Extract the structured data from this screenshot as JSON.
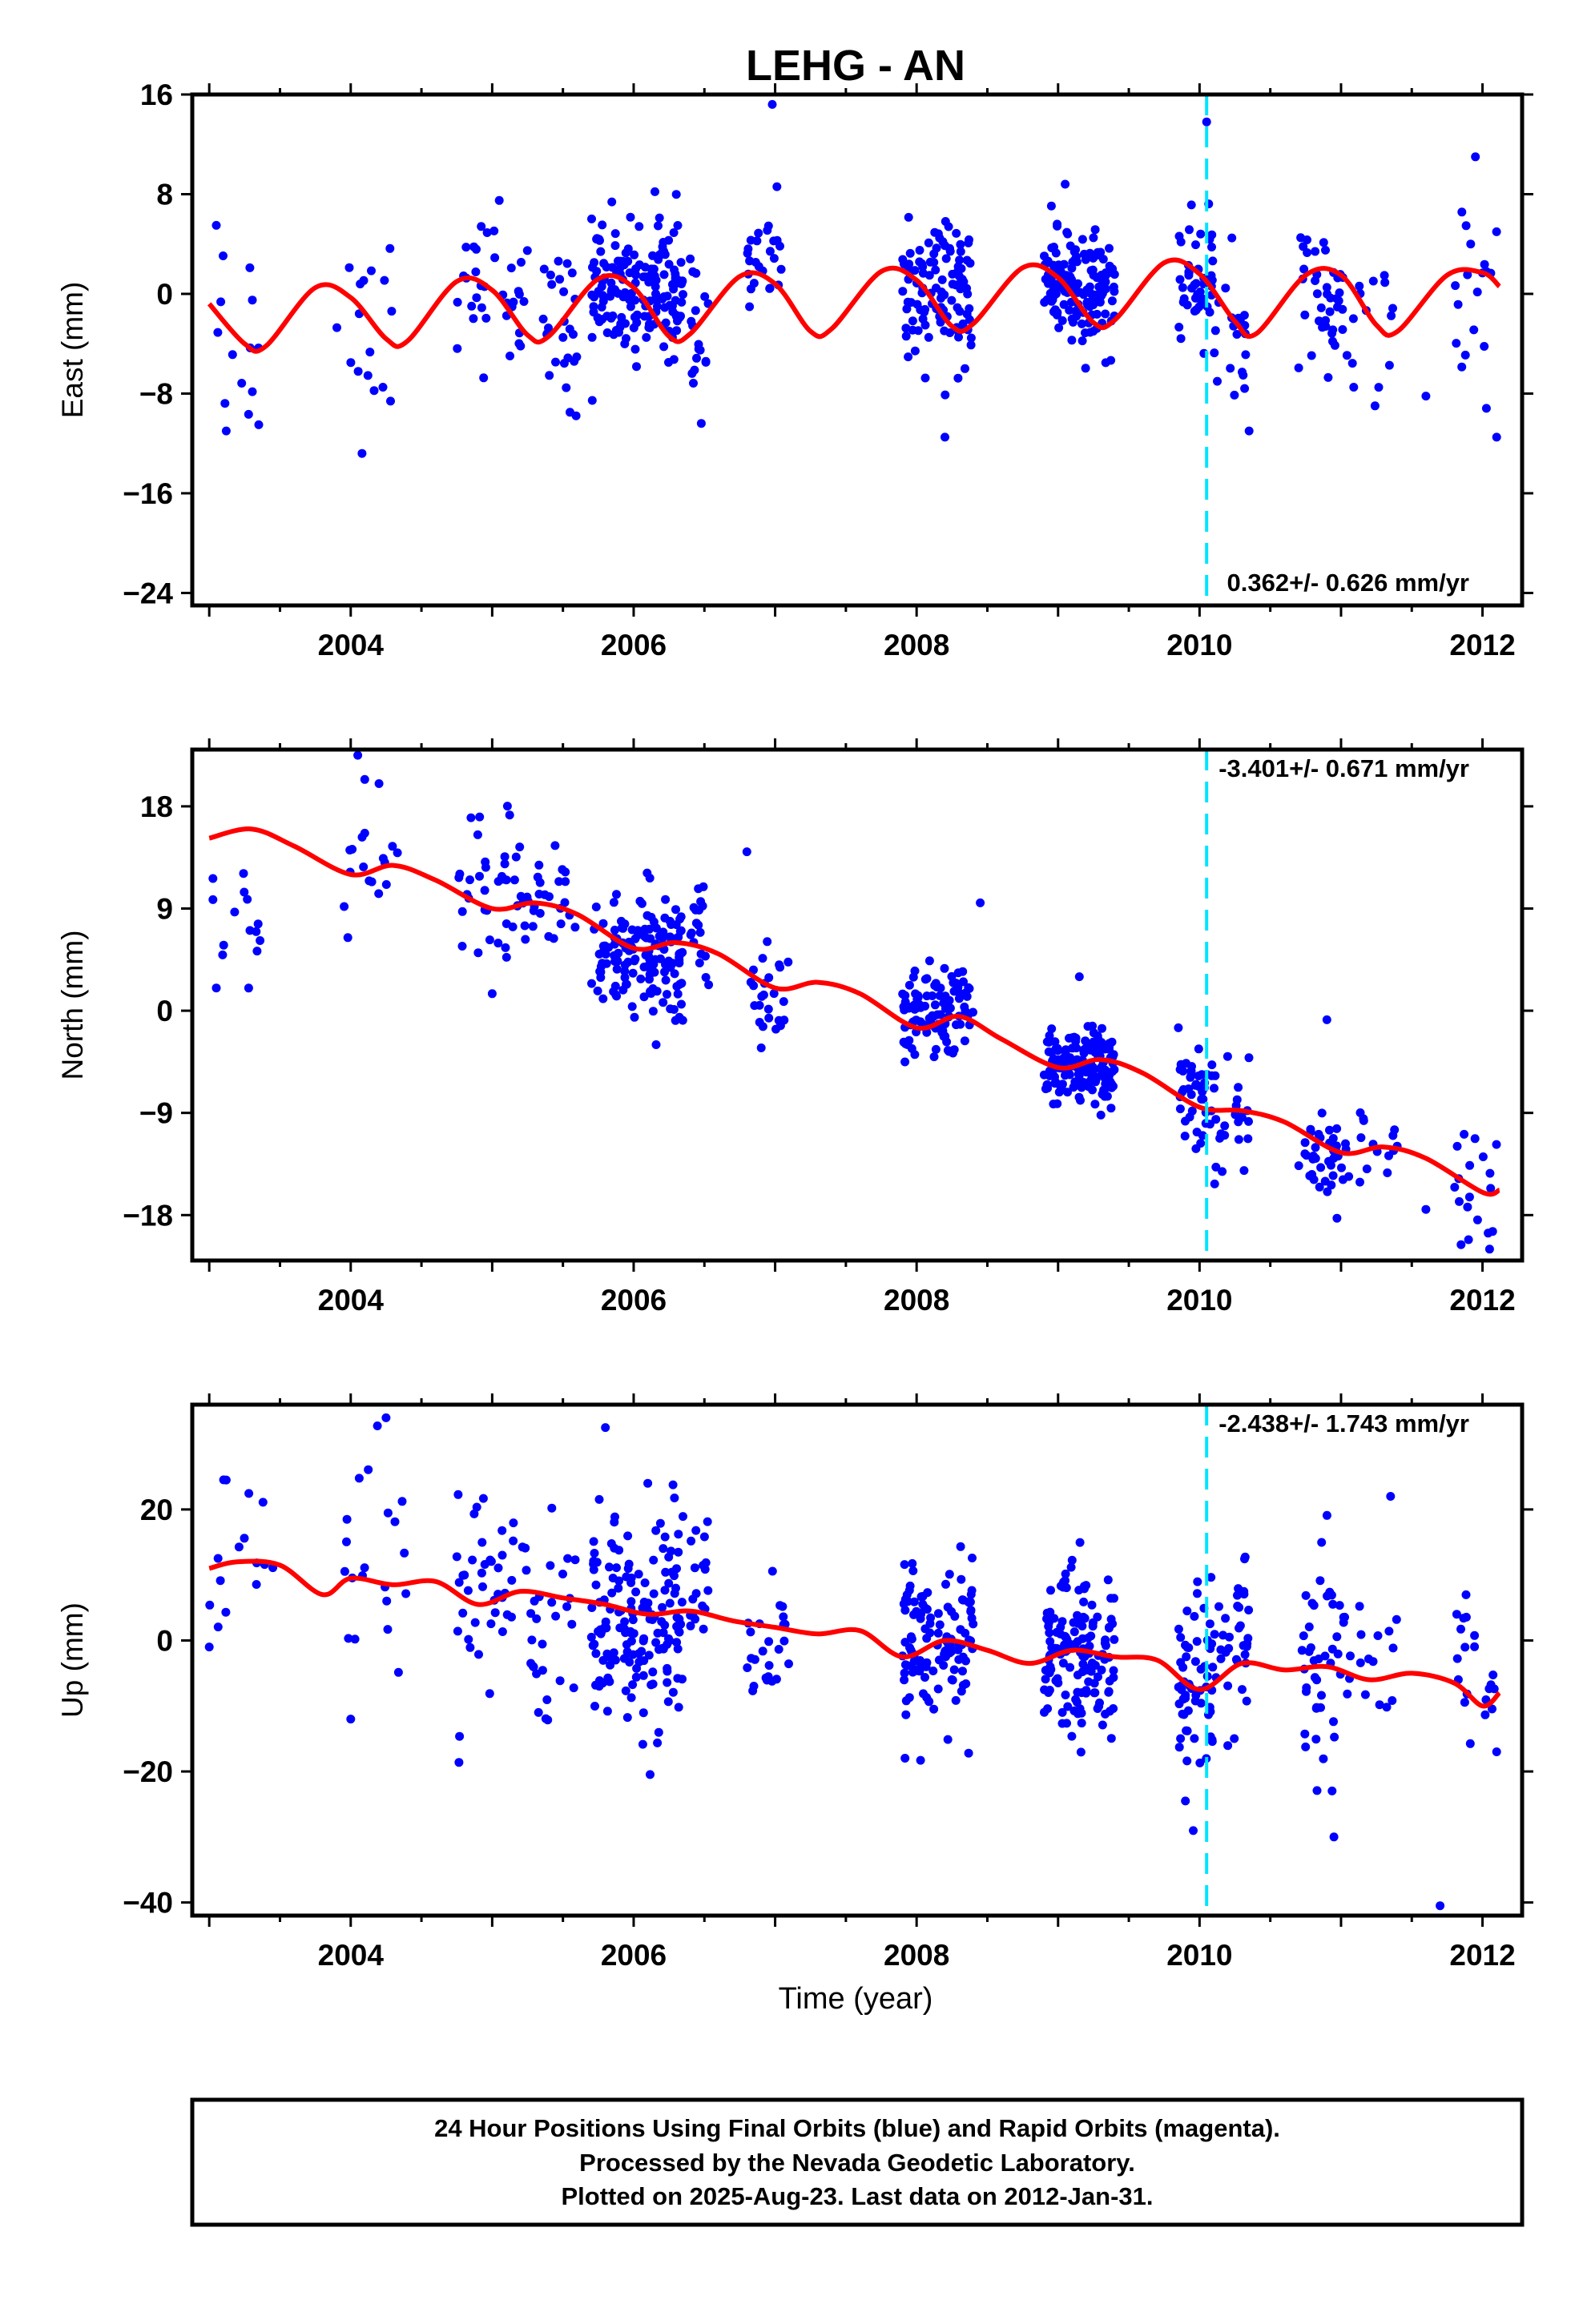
{
  "title": "LEHG - AN",
  "colors": {
    "points": "#0000ff",
    "fit": "#ff0000",
    "marker": "#00e5ff",
    "frame": "#000000"
  },
  "footer": {
    "line1": "24 Hour Positions Using Final Orbits (blue) and Rapid Orbits (magenta).",
    "line2": "Processed by the Nevada Geodetic Laboratory.",
    "line3": "Plotted on 2025-Aug-23. Last data on 2012-Jan-31."
  },
  "chart_data": [
    {
      "type": "scatter",
      "ylabel": "East (mm)",
      "xlabel": "",
      "xlim": [
        2002.88,
        2012.28
      ],
      "ylim": [
        -25,
        16
      ],
      "xticks": [
        2004,
        2006,
        2008,
        2010,
        2012
      ],
      "yticks": [
        -24,
        -16,
        -8,
        0,
        8,
        16
      ],
      "rate_label": "0.362+/- 0.626 mm/yr",
      "rate_position": "bottom-right",
      "marker_line_x": 2010.05,
      "fit": {
        "name": "",
        "x": [
          2003.0,
          2003.25,
          2003.4,
          2003.75,
          2004.0,
          2004.25,
          2004.4,
          2004.75,
          2005.0,
          2005.25,
          2005.4,
          2005.75,
          2006.0,
          2006.25,
          2006.4,
          2006.75,
          2007.0,
          2007.25,
          2007.4,
          2007.75,
          2008.0,
          2008.25,
          2008.4,
          2008.75,
          2009.0,
          2009.25,
          2009.4,
          2009.75,
          2010.0,
          2010.25,
          2010.4,
          2010.75,
          2011.0,
          2011.25,
          2011.4,
          2011.75,
          2012.0,
          2012.12
        ],
        "y": [
          -0.8,
          -4.0,
          -4.2,
          0.5,
          -0.3,
          -3.6,
          -3.8,
          1.0,
          0.3,
          -3.3,
          -3.4,
          1.2,
          0.5,
          -3.4,
          -3.2,
          1.4,
          0.8,
          -3.0,
          -2.8,
          1.8,
          1.1,
          -2.6,
          -2.4,
          2.1,
          1.3,
          -2.3,
          -2.1,
          2.5,
          1.6,
          -2.2,
          -3.2,
          1.5,
          1.5,
          -2.5,
          -3.0,
          1.5,
          1.7,
          0.6
        ]
      },
      "series": [
        {
          "name": "",
          "clusters": [
            {
              "x": [
                2003.0,
                2003.35
              ],
              "n": 12,
              "mean": -2.5,
              "sd": 4.5
            },
            {
              "x": [
                2003.9,
                2004.3
              ],
              "n": 16,
              "mean": -1.5,
              "sd": 4.0
            },
            {
              "x": [
                2004.75,
                2005.3
              ],
              "n": 35,
              "mean": 0.5,
              "sd": 3.0
            },
            {
              "x": [
                2005.3,
                2005.6
              ],
              "n": 25,
              "mean": -3.0,
              "sd": 3.0
            },
            {
              "x": [
                2005.7,
                2006.35
              ],
              "n": 170,
              "mean": 0.5,
              "sd": 2.6
            },
            {
              "x": [
                2006.4,
                2006.55
              ],
              "n": 18,
              "mean": -4.0,
              "sd": 2.5
            },
            {
              "x": [
                2006.8,
                2007.05
              ],
              "n": 25,
              "mean": 2.5,
              "sd": 2.2
            },
            {
              "x": [
                2007.9,
                2008.4
              ],
              "n": 110,
              "mean": 0.0,
              "sd": 2.8
            },
            {
              "x": [
                2008.9,
                2009.4
              ],
              "n": 150,
              "mean": 0.3,
              "sd": 2.2
            },
            {
              "x": [
                2009.85,
                2010.1
              ],
              "n": 45,
              "mean": 1.2,
              "sd": 2.5
            },
            {
              "x": [
                2010.1,
                2010.35
              ],
              "n": 20,
              "mean": -3.0,
              "sd": 3.0
            },
            {
              "x": [
                2010.7,
                2011.05
              ],
              "n": 40,
              "mean": -0.5,
              "sd": 3.0
            },
            {
              "x": [
                2011.05,
                2011.4
              ],
              "n": 14,
              "mean": -3.5,
              "sd": 3.0
            },
            {
              "x": [
                2011.8,
                2012.1
              ],
              "n": 18,
              "mean": 0.5,
              "sd": 4.0
            }
          ],
          "outliers": [
            [
              2003.05,
              5.5
            ],
            [
              2003.12,
              -11.0
            ],
            [
              2003.35,
              -10.5
            ],
            [
              2004.08,
              -12.8
            ],
            [
              2005.05,
              7.5
            ],
            [
              2005.55,
              -9.5
            ],
            [
              2006.15,
              8.2
            ],
            [
              2006.98,
              15.2
            ],
            [
              2008.2,
              -11.5
            ],
            [
              2009.05,
              8.8
            ],
            [
              2010.05,
              13.8
            ],
            [
              2010.35,
              -11.0
            ],
            [
              2011.6,
              -8.2
            ],
            [
              2011.95,
              11.0
            ],
            [
              2012.1,
              -11.5
            ]
          ]
        }
      ]
    },
    {
      "type": "scatter",
      "ylabel": "North (mm)",
      "xlabel": "",
      "xlim": [
        2002.88,
        2012.28
      ],
      "ylim": [
        -22,
        23
      ],
      "xticks": [
        2004,
        2006,
        2008,
        2010,
        2012
      ],
      "yticks": [
        -18,
        -9,
        0,
        9,
        18
      ],
      "rate_label": "-3.401+/- 0.671 mm/yr",
      "rate_position": "top-right",
      "marker_line_x": 2010.05,
      "fit": {
        "name": "",
        "x": [
          2003.0,
          2003.3,
          2003.6,
          2004.0,
          2004.3,
          2004.6,
          2005.0,
          2005.3,
          2005.6,
          2006.0,
          2006.3,
          2006.6,
          2007.0,
          2007.3,
          2007.6,
          2008.0,
          2008.3,
          2008.6,
          2009.0,
          2009.3,
          2009.6,
          2010.0,
          2010.3,
          2010.6,
          2011.0,
          2011.3,
          2011.6,
          2012.0,
          2012.12
        ],
        "y": [
          15.2,
          16.0,
          14.5,
          12.0,
          12.8,
          11.5,
          9.0,
          9.5,
          8.5,
          5.5,
          6.0,
          5.0,
          2.0,
          2.5,
          1.5,
          -1.5,
          -0.5,
          -2.5,
          -5.0,
          -4.3,
          -5.5,
          -8.5,
          -8.8,
          -9.8,
          -12.5,
          -12.0,
          -13.0,
          -16.0,
          -15.8
        ]
      },
      "series": [
        {
          "name": "",
          "clusters": [
            {
              "x": [
                2003.0,
                2003.45
              ],
              "n": 14,
              "mean": 7.5,
              "sd": 4.0
            },
            {
              "x": [
                2003.95,
                2004.35
              ],
              "n": 18,
              "mean": 12.5,
              "sd": 3.5
            },
            {
              "x": [
                2004.75,
                2005.2
              ],
              "n": 35,
              "mean": 11.0,
              "sd": 3.0
            },
            {
              "x": [
                2005.2,
                2005.6
              ],
              "n": 28,
              "mean": 9.0,
              "sd": 2.5
            },
            {
              "x": [
                2005.7,
                2006.35
              ],
              "n": 150,
              "mean": 5.0,
              "sd": 2.8
            },
            {
              "x": [
                2006.4,
                2006.55
              ],
              "n": 18,
              "mean": 7.0,
              "sd": 1.8
            },
            {
              "x": [
                2006.8,
                2007.1
              ],
              "n": 25,
              "mean": 1.5,
              "sd": 2.5
            },
            {
              "x": [
                2007.9,
                2008.4
              ],
              "n": 110,
              "mean": -0.5,
              "sd": 2.2
            },
            {
              "x": [
                2008.9,
                2009.4
              ],
              "n": 150,
              "mean": -5.0,
              "sd": 1.6
            },
            {
              "x": [
                2009.85,
                2010.1
              ],
              "n": 40,
              "mean": -7.5,
              "sd": 2.2
            },
            {
              "x": [
                2010.1,
                2010.35
              ],
              "n": 25,
              "mean": -9.5,
              "sd": 2.5
            },
            {
              "x": [
                2010.7,
                2011.05
              ],
              "n": 40,
              "mean": -13.5,
              "sd": 2.0
            },
            {
              "x": [
                2011.05,
                2011.4
              ],
              "n": 15,
              "mean": -13.0,
              "sd": 2.0
            },
            {
              "x": [
                2011.8,
                2012.1
              ],
              "n": 20,
              "mean": -16.0,
              "sd": 3.0
            }
          ],
          "outliers": [
            [
              2003.05,
              2.0
            ],
            [
              2004.05,
              22.5
            ],
            [
              2004.2,
              20.0
            ],
            [
              2004.85,
              17.0
            ],
            [
              2005.0,
              1.5
            ],
            [
              2006.8,
              14.0
            ],
            [
              2008.45,
              9.5
            ],
            [
              2009.15,
              3.0
            ],
            [
              2009.85,
              -1.5
            ],
            [
              2010.9,
              -0.8
            ],
            [
              2011.6,
              -17.5
            ],
            [
              2012.05,
              -21.0
            ]
          ]
        }
      ]
    },
    {
      "type": "scatter",
      "ylabel": "Up (mm)",
      "xlabel": "Time (year)",
      "xlim": [
        2002.88,
        2012.28
      ],
      "ylim": [
        -42,
        36
      ],
      "xticks": [
        2004,
        2006,
        2008,
        2010,
        2012
      ],
      "yticks": [
        -40,
        -20,
        0,
        20
      ],
      "rate_label": "-2.438+/- 1.743 mm/yr",
      "rate_position": "top-right",
      "marker_line_x": 2010.05,
      "fit": {
        "name": "",
        "x": [
          2003.0,
          2003.2,
          2003.5,
          2003.8,
          2004.0,
          2004.3,
          2004.6,
          2004.9,
          2005.2,
          2005.5,
          2005.8,
          2006.1,
          2006.4,
          2006.7,
          2007.0,
          2007.3,
          2007.6,
          2007.9,
          2008.2,
          2008.5,
          2008.8,
          2009.1,
          2009.4,
          2009.7,
          2010.0,
          2010.3,
          2010.6,
          2010.9,
          2011.2,
          2011.5,
          2011.8,
          2012.0,
          2012.12
        ],
        "y": [
          11.0,
          12.0,
          11.5,
          7.0,
          9.5,
          8.5,
          9.0,
          5.5,
          7.5,
          6.5,
          5.5,
          4.0,
          4.5,
          3.0,
          2.0,
          1.0,
          1.5,
          -2.5,
          0.0,
          -1.5,
          -3.5,
          -1.5,
          -2.5,
          -3.0,
          -7.5,
          -3.5,
          -4.5,
          -4.0,
          -6.0,
          -5.0,
          -6.5,
          -10.0,
          -8.0
        ]
      },
      "series": [
        {
          "name": "",
          "clusters": [
            {
              "x": [
                2003.0,
                2003.45
              ],
              "n": 14,
              "mean": 10.0,
              "sd": 9.0
            },
            {
              "x": [
                2003.95,
                2004.4
              ],
              "n": 20,
              "mean": 14.0,
              "sd": 9.0
            },
            {
              "x": [
                2004.75,
                2005.2
              ],
              "n": 40,
              "mean": 8.0,
              "sd": 8.0
            },
            {
              "x": [
                2005.2,
                2005.6
              ],
              "n": 30,
              "mean": 5.0,
              "sd": 8.0
            },
            {
              "x": [
                2005.7,
                2006.35
              ],
              "n": 160,
              "mean": 3.0,
              "sd": 8.0
            },
            {
              "x": [
                2006.4,
                2006.55
              ],
              "n": 18,
              "mean": 10.0,
              "sd": 5.0
            },
            {
              "x": [
                2006.8,
                2007.1
              ],
              "n": 25,
              "mean": -3.0,
              "sd": 5.0
            },
            {
              "x": [
                2007.9,
                2008.4
              ],
              "n": 120,
              "mean": -1.0,
              "sd": 7.0
            },
            {
              "x": [
                2008.9,
                2009.4
              ],
              "n": 150,
              "mean": -2.5,
              "sd": 7.0
            },
            {
              "x": [
                2009.85,
                2010.1
              ],
              "n": 60,
              "mean": -8.0,
              "sd": 7.0
            },
            {
              "x": [
                2010.1,
                2010.35
              ],
              "n": 35,
              "mean": -2.0,
              "sd": 7.0
            },
            {
              "x": [
                2010.7,
                2011.05
              ],
              "n": 45,
              "mean": -6.0,
              "sd": 8.0
            },
            {
              "x": [
                2011.05,
                2011.4
              ],
              "n": 15,
              "mean": -3.0,
              "sd": 6.0
            },
            {
              "x": [
                2011.8,
                2012.1
              ],
              "n": 20,
              "mean": -3.0,
              "sd": 9.0
            }
          ],
          "outliers": [
            [
              2003.0,
              -1.0
            ],
            [
              2003.12,
              24.5
            ],
            [
              2004.25,
              34.0
            ],
            [
              2004.0,
              -12.0
            ],
            [
              2005.8,
              32.5
            ],
            [
              2006.1,
              24.0
            ],
            [
              2009.9,
              -24.5
            ],
            [
              2010.95,
              -30.0
            ],
            [
              2011.35,
              22.0
            ],
            [
              2011.7,
              -40.5
            ],
            [
              2012.1,
              -17.0
            ]
          ]
        }
      ]
    }
  ]
}
